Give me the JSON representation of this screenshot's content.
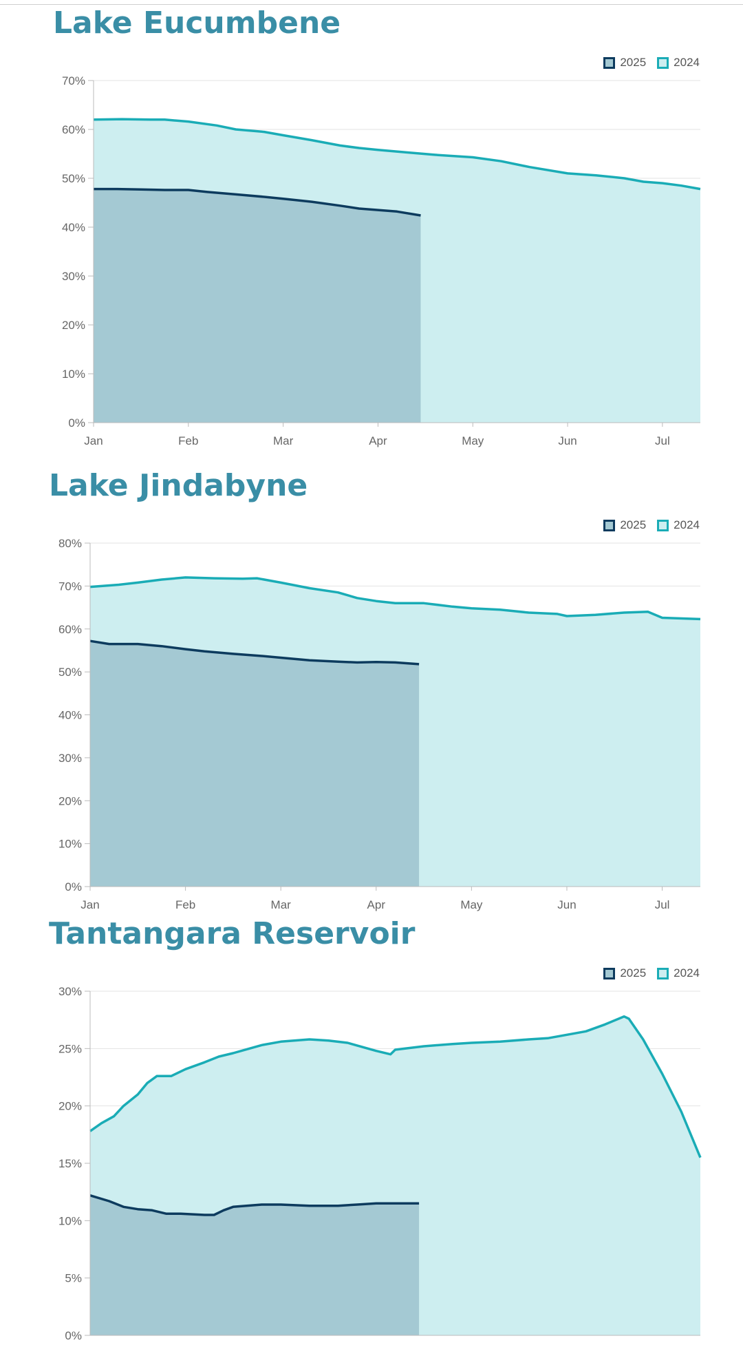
{
  "colors": {
    "title": "#3a8ea6",
    "s2025_line": "#0d3b5e",
    "s2025_fill": "#a4c9d3",
    "s2024_line": "#1aacb6",
    "s2024_fill": "#cdeef0",
    "grid": "#e3e3e3",
    "axis": "#bbbbbb",
    "tick_text": "#666666"
  },
  "icons": [
    "legend-swatch-2025-icon",
    "legend-swatch-2024-icon"
  ],
  "chart_data": [
    {
      "type": "area",
      "title": "Lake Eucumbene",
      "legend": {
        "placement": "top-right",
        "entries": [
          "2025",
          "2024"
        ]
      },
      "x_axis": {
        "categories": [
          "Jan",
          "Feb",
          "Mar",
          "Apr",
          "May",
          "Jun",
          "Jul"
        ],
        "xlim": [
          0,
          6.4
        ]
      },
      "y_axis": {
        "ticks": [
          "0%",
          "10%",
          "20%",
          "30%",
          "40%",
          "50%",
          "60%",
          "70%"
        ],
        "ylim": [
          0,
          70
        ]
      },
      "grid": true,
      "series": [
        {
          "name": "2025",
          "points": [
            [
              0,
              47.8
            ],
            [
              0.25,
              47.8
            ],
            [
              0.5,
              47.7
            ],
            [
              0.75,
              47.6
            ],
            [
              1,
              47.6
            ],
            [
              1.2,
              47.2
            ],
            [
              1.5,
              46.7
            ],
            [
              1.8,
              46.2
            ],
            [
              2,
              45.8
            ],
            [
              2.3,
              45.2
            ],
            [
              2.6,
              44.4
            ],
            [
              2.8,
              43.8
            ],
            [
              3,
              43.5
            ],
            [
              3.2,
              43.2
            ],
            [
              3.45,
              42.4
            ]
          ]
        },
        {
          "name": "2024",
          "points": [
            [
              0,
              62.0
            ],
            [
              0.3,
              62.1
            ],
            [
              0.6,
              62.0
            ],
            [
              0.75,
              62.0
            ],
            [
              1,
              61.6
            ],
            [
              1.3,
              60.8
            ],
            [
              1.5,
              60.0
            ],
            [
              1.8,
              59.5
            ],
            [
              2,
              58.8
            ],
            [
              2.3,
              57.8
            ],
            [
              2.6,
              56.7
            ],
            [
              2.8,
              56.2
            ],
            [
              3,
              55.8
            ],
            [
              3.3,
              55.3
            ],
            [
              3.6,
              54.8
            ],
            [
              4,
              54.3
            ],
            [
              4.3,
              53.5
            ],
            [
              4.6,
              52.3
            ],
            [
              5,
              51.0
            ],
            [
              5.3,
              50.6
            ],
            [
              5.6,
              50.0
            ],
            [
              5.8,
              49.3
            ],
            [
              6,
              49.0
            ],
            [
              6.2,
              48.5
            ],
            [
              6.4,
              47.8
            ]
          ]
        }
      ]
    },
    {
      "type": "area",
      "title": "Lake Jindabyne",
      "legend": {
        "placement": "top-right",
        "entries": [
          "2025",
          "2024"
        ]
      },
      "x_axis": {
        "categories": [
          "Jan",
          "Feb",
          "Mar",
          "Apr",
          "May",
          "Jun",
          "Jul"
        ],
        "xlim": [
          0,
          6.4
        ]
      },
      "y_axis": {
        "ticks": [
          "0%",
          "10%",
          "20%",
          "30%",
          "40%",
          "50%",
          "60%",
          "70%",
          "80%"
        ],
        "ylim": [
          0,
          80
        ]
      },
      "grid": true,
      "series": [
        {
          "name": "2025",
          "points": [
            [
              0,
              57.2
            ],
            [
              0.2,
              56.5
            ],
            [
              0.5,
              56.5
            ],
            [
              0.75,
              56.0
            ],
            [
              1,
              55.3
            ],
            [
              1.2,
              54.8
            ],
            [
              1.5,
              54.2
            ],
            [
              1.8,
              53.7
            ],
            [
              2,
              53.3
            ],
            [
              2.3,
              52.7
            ],
            [
              2.6,
              52.4
            ],
            [
              2.8,
              52.2
            ],
            [
              3,
              52.3
            ],
            [
              3.2,
              52.2
            ],
            [
              3.45,
              51.8
            ]
          ]
        },
        {
          "name": "2024",
          "points": [
            [
              0,
              69.8
            ],
            [
              0.3,
              70.3
            ],
            [
              0.5,
              70.8
            ],
            [
              0.75,
              71.5
            ],
            [
              1,
              72.0
            ],
            [
              1.3,
              71.8
            ],
            [
              1.6,
              71.7
            ],
            [
              1.75,
              71.8
            ],
            [
              2,
              70.8
            ],
            [
              2.3,
              69.5
            ],
            [
              2.6,
              68.5
            ],
            [
              2.8,
              67.2
            ],
            [
              3,
              66.5
            ],
            [
              3.2,
              66.0
            ],
            [
              3.5,
              66.0
            ],
            [
              3.8,
              65.2
            ],
            [
              4,
              64.8
            ],
            [
              4.3,
              64.5
            ],
            [
              4.6,
              63.8
            ],
            [
              4.9,
              63.5
            ],
            [
              5,
              63.0
            ],
            [
              5.3,
              63.3
            ],
            [
              5.6,
              63.8
            ],
            [
              5.85,
              64.0
            ],
            [
              6,
              62.6
            ],
            [
              6.4,
              62.3
            ]
          ]
        }
      ]
    },
    {
      "type": "area",
      "title": "Tantangara Reservoir",
      "legend": {
        "placement": "top-right",
        "entries": [
          "2025",
          "2024"
        ]
      },
      "x_axis": {
        "categories": [],
        "xlim": [
          0,
          6.4
        ]
      },
      "y_axis": {
        "ticks": [
          "0%",
          "5%",
          "10%",
          "15%",
          "20%",
          "25%",
          "30%"
        ],
        "ylim": [
          0,
          30
        ]
      },
      "grid": true,
      "series": [
        {
          "name": "2025",
          "points": [
            [
              0,
              12.2
            ],
            [
              0.2,
              11.7
            ],
            [
              0.35,
              11.2
            ],
            [
              0.5,
              11.0
            ],
            [
              0.65,
              10.9
            ],
            [
              0.8,
              10.6
            ],
            [
              0.95,
              10.6
            ],
            [
              1.2,
              10.5
            ],
            [
              1.3,
              10.5
            ],
            [
              1.4,
              10.9
            ],
            [
              1.5,
              11.2
            ],
            [
              1.8,
              11.4
            ],
            [
              2,
              11.4
            ],
            [
              2.3,
              11.3
            ],
            [
              2.6,
              11.3
            ],
            [
              2.8,
              11.4
            ],
            [
              3,
              11.5
            ],
            [
              3.2,
              11.5
            ],
            [
              3.45,
              11.5
            ]
          ]
        },
        {
          "name": "2024",
          "points": [
            [
              0,
              17.8
            ],
            [
              0.12,
              18.5
            ],
            [
              0.25,
              19.1
            ],
            [
              0.35,
              20.0
            ],
            [
              0.5,
              21.0
            ],
            [
              0.6,
              22.0
            ],
            [
              0.7,
              22.6
            ],
            [
              0.85,
              22.6
            ],
            [
              1,
              23.2
            ],
            [
              1.2,
              23.8
            ],
            [
              1.35,
              24.3
            ],
            [
              1.5,
              24.6
            ],
            [
              1.8,
              25.3
            ],
            [
              2,
              25.6
            ],
            [
              2.3,
              25.8
            ],
            [
              2.5,
              25.7
            ],
            [
              2.7,
              25.5
            ],
            [
              3,
              24.8
            ],
            [
              3.15,
              24.5
            ],
            [
              3.2,
              24.9
            ],
            [
              3.5,
              25.2
            ],
            [
              3.8,
              25.4
            ],
            [
              4,
              25.5
            ],
            [
              4.3,
              25.6
            ],
            [
              4.6,
              25.8
            ],
            [
              4.8,
              25.9
            ],
            [
              5,
              26.2
            ],
            [
              5.2,
              26.5
            ],
            [
              5.4,
              27.1
            ],
            [
              5.6,
              27.8
            ],
            [
              5.65,
              27.6
            ],
            [
              5.8,
              25.8
            ],
            [
              6,
              22.8
            ],
            [
              6.2,
              19.5
            ],
            [
              6.4,
              15.5
            ]
          ]
        }
      ]
    }
  ]
}
